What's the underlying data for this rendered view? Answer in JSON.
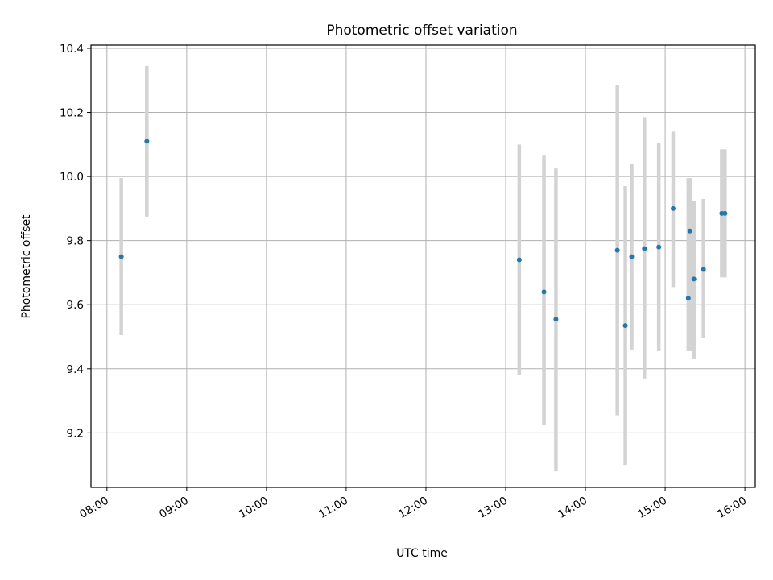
{
  "chart_data": {
    "type": "scatter",
    "title": "Photometric offset variation",
    "xlabel": "UTC time",
    "ylabel": "Photometric offset",
    "x_unit": "hours UTC",
    "xlim": [
      7.8,
      16.13
    ],
    "ylim": [
      9.03,
      10.41
    ],
    "x_ticks": [
      {
        "value": 8,
        "label": "08:00"
      },
      {
        "value": 9,
        "label": "09:00"
      },
      {
        "value": 10,
        "label": "10:00"
      },
      {
        "value": 11,
        "label": "11:00"
      },
      {
        "value": 12,
        "label": "12:00"
      },
      {
        "value": 13,
        "label": "13:00"
      },
      {
        "value": 14,
        "label": "14:00"
      },
      {
        "value": 15,
        "label": "15:00"
      },
      {
        "value": 16,
        "label": "16:00"
      }
    ],
    "y_ticks": [
      {
        "value": 9.2,
        "label": "9.2"
      },
      {
        "value": 9.4,
        "label": "9.4"
      },
      {
        "value": 9.6,
        "label": "9.6"
      },
      {
        "value": 9.8,
        "label": "9.8"
      },
      {
        "value": 10.0,
        "label": "10.0"
      },
      {
        "value": 10.2,
        "label": "10.2"
      },
      {
        "value": 10.4,
        "label": "10.4"
      }
    ],
    "grid": true,
    "marker_color": "#1f77b4",
    "errorbar_color": "#d3d3d3",
    "points": [
      {
        "t": "08:11",
        "x": 8.18,
        "y": 9.75,
        "err_low": 9.505,
        "err_high": 9.995
      },
      {
        "t": "08:30",
        "x": 8.5,
        "y": 10.11,
        "err_low": 9.875,
        "err_high": 10.345
      },
      {
        "t": "13:10",
        "x": 13.17,
        "y": 9.74,
        "err_low": 9.38,
        "err_high": 10.1
      },
      {
        "t": "13:29",
        "x": 13.48,
        "y": 9.64,
        "err_low": 9.225,
        "err_high": 10.065
      },
      {
        "t": "13:38",
        "x": 13.63,
        "y": 9.555,
        "err_low": 9.08,
        "err_high": 10.025
      },
      {
        "t": "14:24",
        "x": 14.4,
        "y": 9.77,
        "err_low": 9.255,
        "err_high": 10.285
      },
      {
        "t": "14:30",
        "x": 14.5,
        "y": 9.535,
        "err_low": 9.1,
        "err_high": 9.97
      },
      {
        "t": "14:35",
        "x": 14.58,
        "y": 9.75,
        "err_low": 9.46,
        "err_high": 10.04
      },
      {
        "t": "14:44",
        "x": 14.74,
        "y": 9.775,
        "err_low": 9.37,
        "err_high": 10.185
      },
      {
        "t": "14:55",
        "x": 14.92,
        "y": 9.78,
        "err_low": 9.455,
        "err_high": 10.105
      },
      {
        "t": "15:06",
        "x": 15.1,
        "y": 9.9,
        "err_low": 9.655,
        "err_high": 10.14
      },
      {
        "t": "15:17",
        "x": 15.29,
        "y": 9.62,
        "err_low": 9.455,
        "err_high": 9.995
      },
      {
        "t": "15:19",
        "x": 15.31,
        "y": 9.83,
        "err_low": 9.455,
        "err_high": 9.995
      },
      {
        "t": "15:22",
        "x": 15.36,
        "y": 9.68,
        "err_low": 9.43,
        "err_high": 9.925
      },
      {
        "t": "15:29",
        "x": 15.48,
        "y": 9.71,
        "err_low": 9.495,
        "err_high": 9.93
      },
      {
        "t": "15:43",
        "x": 15.71,
        "y": 9.885,
        "err_low": 9.685,
        "err_high": 10.085
      },
      {
        "t": "15:45",
        "x": 15.75,
        "y": 9.885,
        "err_low": 9.685,
        "err_high": 10.085
      }
    ]
  }
}
